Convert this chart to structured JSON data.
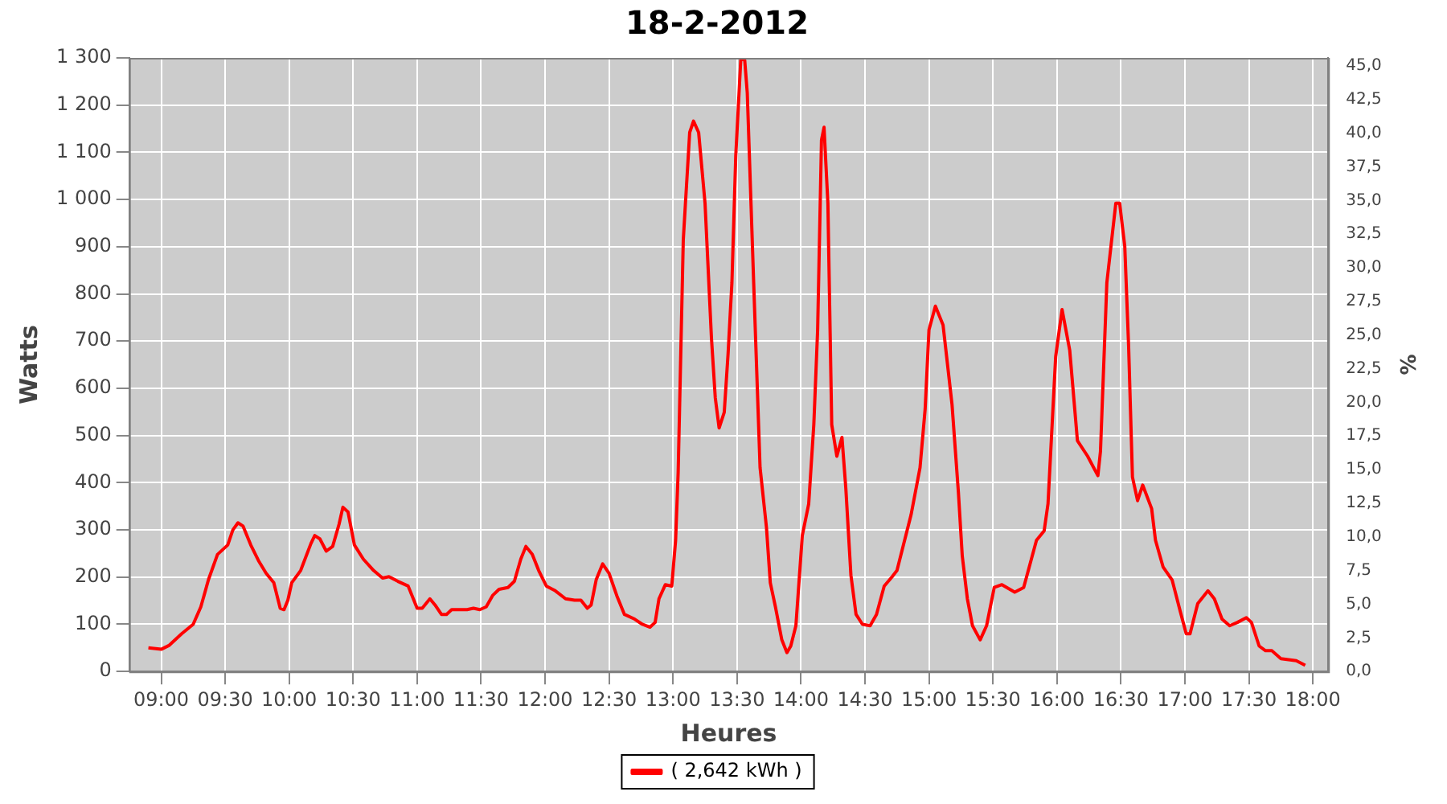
{
  "chart_data": {
    "type": "line",
    "title": "18-2-2012",
    "xlabel": "Heures",
    "ylabel": "Watts",
    "y2label": "%",
    "x": [
      8.9,
      9.0,
      9.06,
      9.16,
      9.25,
      9.31,
      9.37,
      9.44,
      9.52,
      9.56,
      9.6,
      9.64,
      9.7,
      9.76,
      9.82,
      9.88,
      9.93,
      9.96,
      9.99,
      10.02,
      10.09,
      10.17,
      10.2,
      10.24,
      10.29,
      10.34,
      10.39,
      10.42,
      10.46,
      10.51,
      10.58,
      10.66,
      10.73,
      10.78,
      10.85,
      10.93,
      10.96,
      11.0,
      11.04,
      11.1,
      11.14,
      11.19,
      11.23,
      11.27,
      11.39,
      11.44,
      11.49,
      11.54,
      11.59,
      11.64,
      11.71,
      11.76,
      11.81,
      11.85,
      11.9,
      11.95,
      12.01,
      12.08,
      12.16,
      12.23,
      12.28,
      12.33,
      12.36,
      12.4,
      12.45,
      12.5,
      12.56,
      12.62,
      12.7,
      12.76,
      12.82,
      12.86,
      12.89,
      12.94,
      12.99,
      13.02,
      13.04,
      13.08,
      13.13,
      13.16,
      13.2,
      13.25,
      13.3,
      13.33,
      13.36,
      13.4,
      13.43,
      13.46,
      13.49,
      13.53,
      13.56,
      13.58,
      13.63,
      13.68,
      13.73,
      13.76,
      13.8,
      13.85,
      13.89,
      13.92,
      13.96,
      14.01,
      14.06,
      14.1,
      14.13,
      14.16,
      14.18,
      14.21,
      14.24,
      14.28,
      14.32,
      14.35,
      14.39,
      14.43,
      14.48,
      14.54,
      14.59,
      14.65,
      14.71,
      14.75,
      14.86,
      14.93,
      14.97,
      15.0,
      15.05,
      15.11,
      15.18,
      15.23,
      15.26,
      15.3,
      15.34,
      15.4,
      15.45,
      15.51,
      15.57,
      15.67,
      15.74,
      15.84,
      15.9,
      15.93,
      15.99,
      16.04,
      16.1,
      16.16,
      16.24,
      16.32,
      16.34,
      16.39,
      16.46,
      16.49,
      16.53,
      16.56,
      16.59,
      16.63,
      16.67,
      16.74,
      16.77,
      16.83,
      16.9,
      16.96,
      17.01,
      17.04,
      17.1,
      17.18,
      17.23,
      17.29,
      17.35,
      17.41,
      17.48,
      17.52,
      17.58,
      17.63,
      17.68,
      17.75,
      17.87,
      17.94
    ],
    "series": [
      {
        "name": "( 2,642 kWh )",
        "color": "#ff0000",
        "values": [
          50,
          47,
          55,
          80,
          100,
          137,
          195,
          248,
          268,
          300,
          315,
          308,
          268,
          235,
          208,
          188,
          134,
          131,
          151,
          188,
          214,
          271,
          288,
          281,
          255,
          265,
          312,
          348,
          338,
          268,
          238,
          214,
          198,
          201,
          191,
          181,
          161,
          134,
          134,
          154,
          141,
          121,
          121,
          131,
          131,
          134,
          131,
          137,
          161,
          174,
          178,
          191,
          238,
          265,
          248,
          214,
          181,
          171,
          154,
          151,
          151,
          134,
          141,
          195,
          228,
          208,
          161,
          121,
          111,
          100,
          94,
          104,
          154,
          184,
          181,
          278,
          422,
          915,
          1142,
          1166,
          1142,
          992,
          707,
          580,
          516,
          549,
          673,
          824,
          1092,
          1300,
          1295,
          1226,
          824,
          432,
          305,
          188,
          137,
          67,
          40,
          54,
          97,
          288,
          355,
          523,
          724,
          1126,
          1153,
          992,
          523,
          456,
          496,
          389,
          204,
          121,
          100,
          97,
          121,
          181,
          200,
          214,
          332,
          432,
          556,
          724,
          774,
          734,
          566,
          379,
          245,
          154,
          97,
          67,
          97,
          178,
          184,
          168,
          178,
          278,
          298,
          355,
          667,
          767,
          680,
          489,
          456,
          415,
          466,
          824,
          992,
          992,
          901,
          690,
          412,
          362,
          395,
          345,
          278,
          221,
          194,
          131,
          80,
          80,
          144,
          171,
          154,
          111,
          97,
          104,
          114,
          104,
          54,
          44,
          44,
          27,
          23,
          13
        ]
      }
    ],
    "xlim": [
      8.75,
      18.12
    ],
    "xticks": [
      {
        "value": 9,
        "label": "09:00"
      },
      {
        "value": 9.5,
        "label": "09:30"
      },
      {
        "value": 10,
        "label": "10:00"
      },
      {
        "value": 10.5,
        "label": "10:30"
      },
      {
        "value": 11,
        "label": "11:00"
      },
      {
        "value": 11.5,
        "label": "11:30"
      },
      {
        "value": 12,
        "label": "12:00"
      },
      {
        "value": 12.5,
        "label": "12:30"
      },
      {
        "value": 13,
        "label": "13:00"
      },
      {
        "value": 13.5,
        "label": "13:30"
      },
      {
        "value": 14,
        "label": "14:00"
      },
      {
        "value": 14.5,
        "label": "14:30"
      },
      {
        "value": 15,
        "label": "15:00"
      },
      {
        "value": 15.5,
        "label": "15:30"
      },
      {
        "value": 16,
        "label": "16:00"
      },
      {
        "value": 16.5,
        "label": "16:30"
      },
      {
        "value": 17,
        "label": "17:00"
      },
      {
        "value": 17.5,
        "label": "17:30"
      },
      {
        "value": 18,
        "label": "18:00"
      }
    ],
    "ylim": [
      0,
      1300
    ],
    "yticks": [
      0,
      100,
      200,
      300,
      400,
      500,
      600,
      700,
      800,
      900,
      {
        "value": 1000,
        "label": "1 000"
      },
      {
        "value": 1100,
        "label": "1 100"
      },
      {
        "value": 1200,
        "label": "1 200"
      },
      {
        "value": 1300,
        "label": "1 300"
      }
    ],
    "y2lim": [
      0,
      45.6
    ],
    "y2ticks": [
      {
        "value": 0,
        "label": "0,0"
      },
      {
        "value": 2.5,
        "label": "2,5"
      },
      {
        "value": 5,
        "label": "5,0"
      },
      {
        "value": 7.5,
        "label": "7,5"
      },
      {
        "value": 10,
        "label": "10,0"
      },
      {
        "value": 12.5,
        "label": "12,5"
      },
      {
        "value": 15,
        "label": "15,0"
      },
      {
        "value": 17.5,
        "label": "17,5"
      },
      {
        "value": 20,
        "label": "20,0"
      },
      {
        "value": 22.5,
        "label": "22,5"
      },
      {
        "value": 25,
        "label": "25,0"
      },
      {
        "value": 27.5,
        "label": "27,5"
      },
      {
        "value": 30,
        "label": "30,0"
      },
      {
        "value": 32.5,
        "label": "32,5"
      },
      {
        "value": 35,
        "label": "35,0"
      },
      {
        "value": 37.5,
        "label": "37,5"
      },
      {
        "value": 40,
        "label": "40,0"
      },
      {
        "value": 42.5,
        "label": "42,5"
      },
      {
        "value": 45,
        "label": "45,0"
      }
    ],
    "grid": true,
    "legend": "bottom",
    "marker": "none",
    "line_style": "solid"
  }
}
